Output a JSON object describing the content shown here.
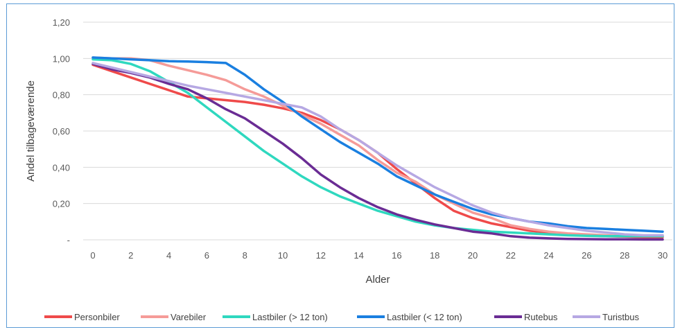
{
  "chart_data": {
    "type": "line",
    "title": "",
    "xlabel": "Alder",
    "ylabel": "Andel tilbageværende",
    "x": [
      0,
      1,
      2,
      3,
      4,
      5,
      6,
      7,
      8,
      9,
      10,
      11,
      12,
      13,
      14,
      15,
      16,
      17,
      18,
      19,
      20,
      21,
      22,
      23,
      24,
      25,
      26,
      27,
      28,
      29,
      30
    ],
    "xticks": [
      "0",
      "2",
      "4",
      "6",
      "8",
      "10",
      "12",
      "14",
      "16",
      "18",
      "20",
      "22",
      "24",
      "26",
      "28",
      "30"
    ],
    "ylim": [
      0,
      1.2
    ],
    "yticks": [
      {
        "value": 0,
        "label": "-"
      },
      {
        "value": 0.2,
        "label": "0,20"
      },
      {
        "value": 0.4,
        "label": "0,40"
      },
      {
        "value": 0.6,
        "label": "0,60"
      },
      {
        "value": 0.8,
        "label": "0,80"
      },
      {
        "value": 1.0,
        "label": "1,00"
      },
      {
        "value": 1.2,
        "label": "1,20"
      }
    ],
    "grid": true,
    "legend_position": "bottom",
    "series": [
      {
        "name": "Personbiler",
        "color": "#ef4a4a",
        "values": [
          0.965,
          0.93,
          0.895,
          0.86,
          0.825,
          0.79,
          0.78,
          0.77,
          0.76,
          0.745,
          0.725,
          0.7,
          0.66,
          0.61,
          0.55,
          0.48,
          0.39,
          0.31,
          0.23,
          0.16,
          0.12,
          0.09,
          0.07,
          0.05,
          0.04,
          0.03,
          0.025,
          0.02,
          0.018,
          0.015,
          0.015
        ]
      },
      {
        "name": "Varebiler",
        "color": "#f59b98",
        "values": [
          1.005,
          1.0,
          1.0,
          0.99,
          0.96,
          0.935,
          0.91,
          0.88,
          0.83,
          0.79,
          0.74,
          0.69,
          0.64,
          0.58,
          0.52,
          0.44,
          0.37,
          0.32,
          0.25,
          0.2,
          0.15,
          0.12,
          0.08,
          0.06,
          0.045,
          0.035,
          0.03,
          0.025,
          0.02,
          0.02,
          0.02
        ]
      },
      {
        "name": "Lastbiler (> 12 ton)",
        "color": "#2fd8bf",
        "values": [
          0.995,
          0.99,
          0.97,
          0.93,
          0.87,
          0.81,
          0.73,
          0.65,
          0.57,
          0.49,
          0.42,
          0.35,
          0.29,
          0.24,
          0.2,
          0.16,
          0.13,
          0.1,
          0.08,
          0.065,
          0.055,
          0.045,
          0.04,
          0.035,
          0.03,
          0.025,
          0.022,
          0.02,
          0.02,
          0.02,
          0.02
        ]
      },
      {
        "name": "Lastbiler (< 12 ton)",
        "color": "#1a7fe0",
        "values": [
          1.005,
          1.0,
          0.995,
          0.99,
          0.985,
          0.983,
          0.98,
          0.975,
          0.91,
          0.83,
          0.76,
          0.68,
          0.61,
          0.54,
          0.48,
          0.42,
          0.35,
          0.3,
          0.25,
          0.21,
          0.17,
          0.14,
          0.12,
          0.1,
          0.09,
          0.075,
          0.065,
          0.06,
          0.055,
          0.05,
          0.045
        ]
      },
      {
        "name": "Rutebus",
        "color": "#6a2c94",
        "values": [
          0.97,
          0.94,
          0.92,
          0.895,
          0.86,
          0.83,
          0.78,
          0.72,
          0.67,
          0.6,
          0.53,
          0.45,
          0.36,
          0.29,
          0.23,
          0.18,
          0.14,
          0.11,
          0.085,
          0.065,
          0.045,
          0.035,
          0.02,
          0.012,
          0.008,
          0.005,
          0.004,
          0.003,
          0.003,
          0.002,
          0.002
        ]
      },
      {
        "name": "Turistbus",
        "color": "#b6a8e3",
        "values": [
          0.975,
          0.95,
          0.925,
          0.9,
          0.875,
          0.85,
          0.83,
          0.81,
          0.79,
          0.77,
          0.75,
          0.73,
          0.68,
          0.61,
          0.55,
          0.48,
          0.41,
          0.35,
          0.29,
          0.24,
          0.19,
          0.15,
          0.12,
          0.1,
          0.08,
          0.065,
          0.05,
          0.04,
          0.03,
          0.025,
          0.025
        ]
      }
    ]
  }
}
